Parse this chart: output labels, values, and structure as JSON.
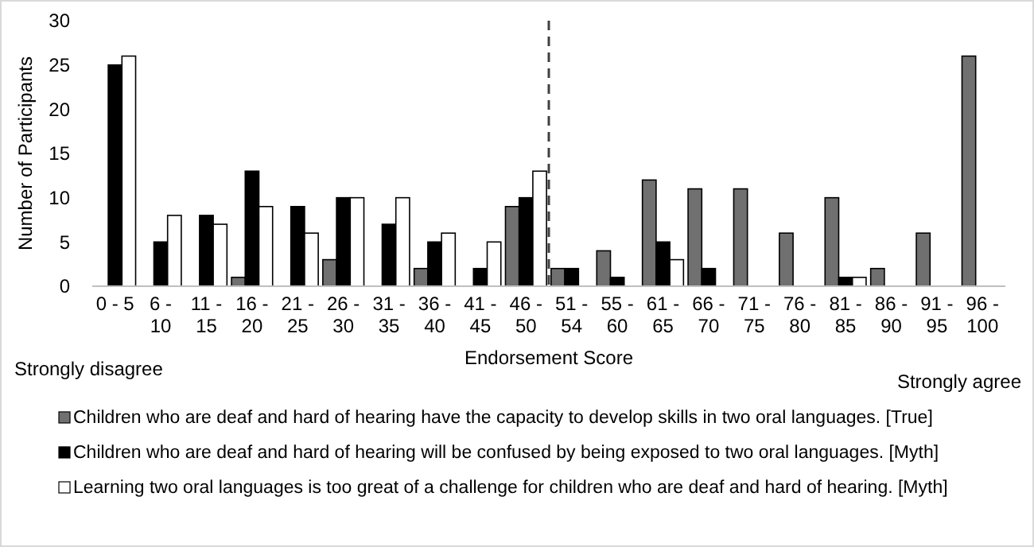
{
  "chart_data": {
    "type": "bar",
    "xlabel": "Endorsement Score",
    "ylabel": "Number of Participants",
    "categories": [
      "0 - 5",
      "6 - 10",
      "11 - 15",
      "16 - 20",
      "21 - 25",
      "26 - 30",
      "31 - 35",
      "36 - 40",
      "41 - 45",
      "46 - 50",
      "51 - 54",
      "55 - 60",
      "61 - 65",
      "66 - 70",
      "71 - 75",
      "76 - 80",
      "81 - 85",
      "86 - 90",
      "91 - 95",
      "96 - 100"
    ],
    "series": [
      {
        "name": "Children who are deaf and hard of hearing have the capacity to develop skills in two oral languages. [True]",
        "color": "#707070",
        "values": [
          0,
          0,
          0,
          1,
          0,
          3,
          0,
          2,
          0,
          9,
          2,
          4,
          12,
          11,
          11,
          6,
          10,
          2,
          6,
          26
        ]
      },
      {
        "name": "Children who are deaf and hard of hearing will be confused by being exposed to two oral languages. [Myth]",
        "color": "#000000",
        "values": [
          25,
          5,
          8,
          13,
          9,
          10,
          7,
          5,
          2,
          10,
          2,
          1,
          5,
          2,
          0,
          0,
          1,
          0,
          0,
          0
        ]
      },
      {
        "name": "Learning two oral languages is too great of a challenge for children who are deaf and hard of hearing. [Myth]",
        "color": "#ffffff",
        "values": [
          26,
          8,
          7,
          9,
          6,
          10,
          10,
          6,
          5,
          13,
          0,
          0,
          3,
          0,
          0,
          0,
          1,
          0,
          0,
          0
        ]
      }
    ],
    "ylim": [
      0,
      30
    ],
    "yticks": [
      0,
      5,
      10,
      15,
      20,
      25,
      30
    ],
    "grid": false,
    "legend": "bottom",
    "annotations": [
      "Strongly disagree",
      "Strongly agree"
    ]
  }
}
